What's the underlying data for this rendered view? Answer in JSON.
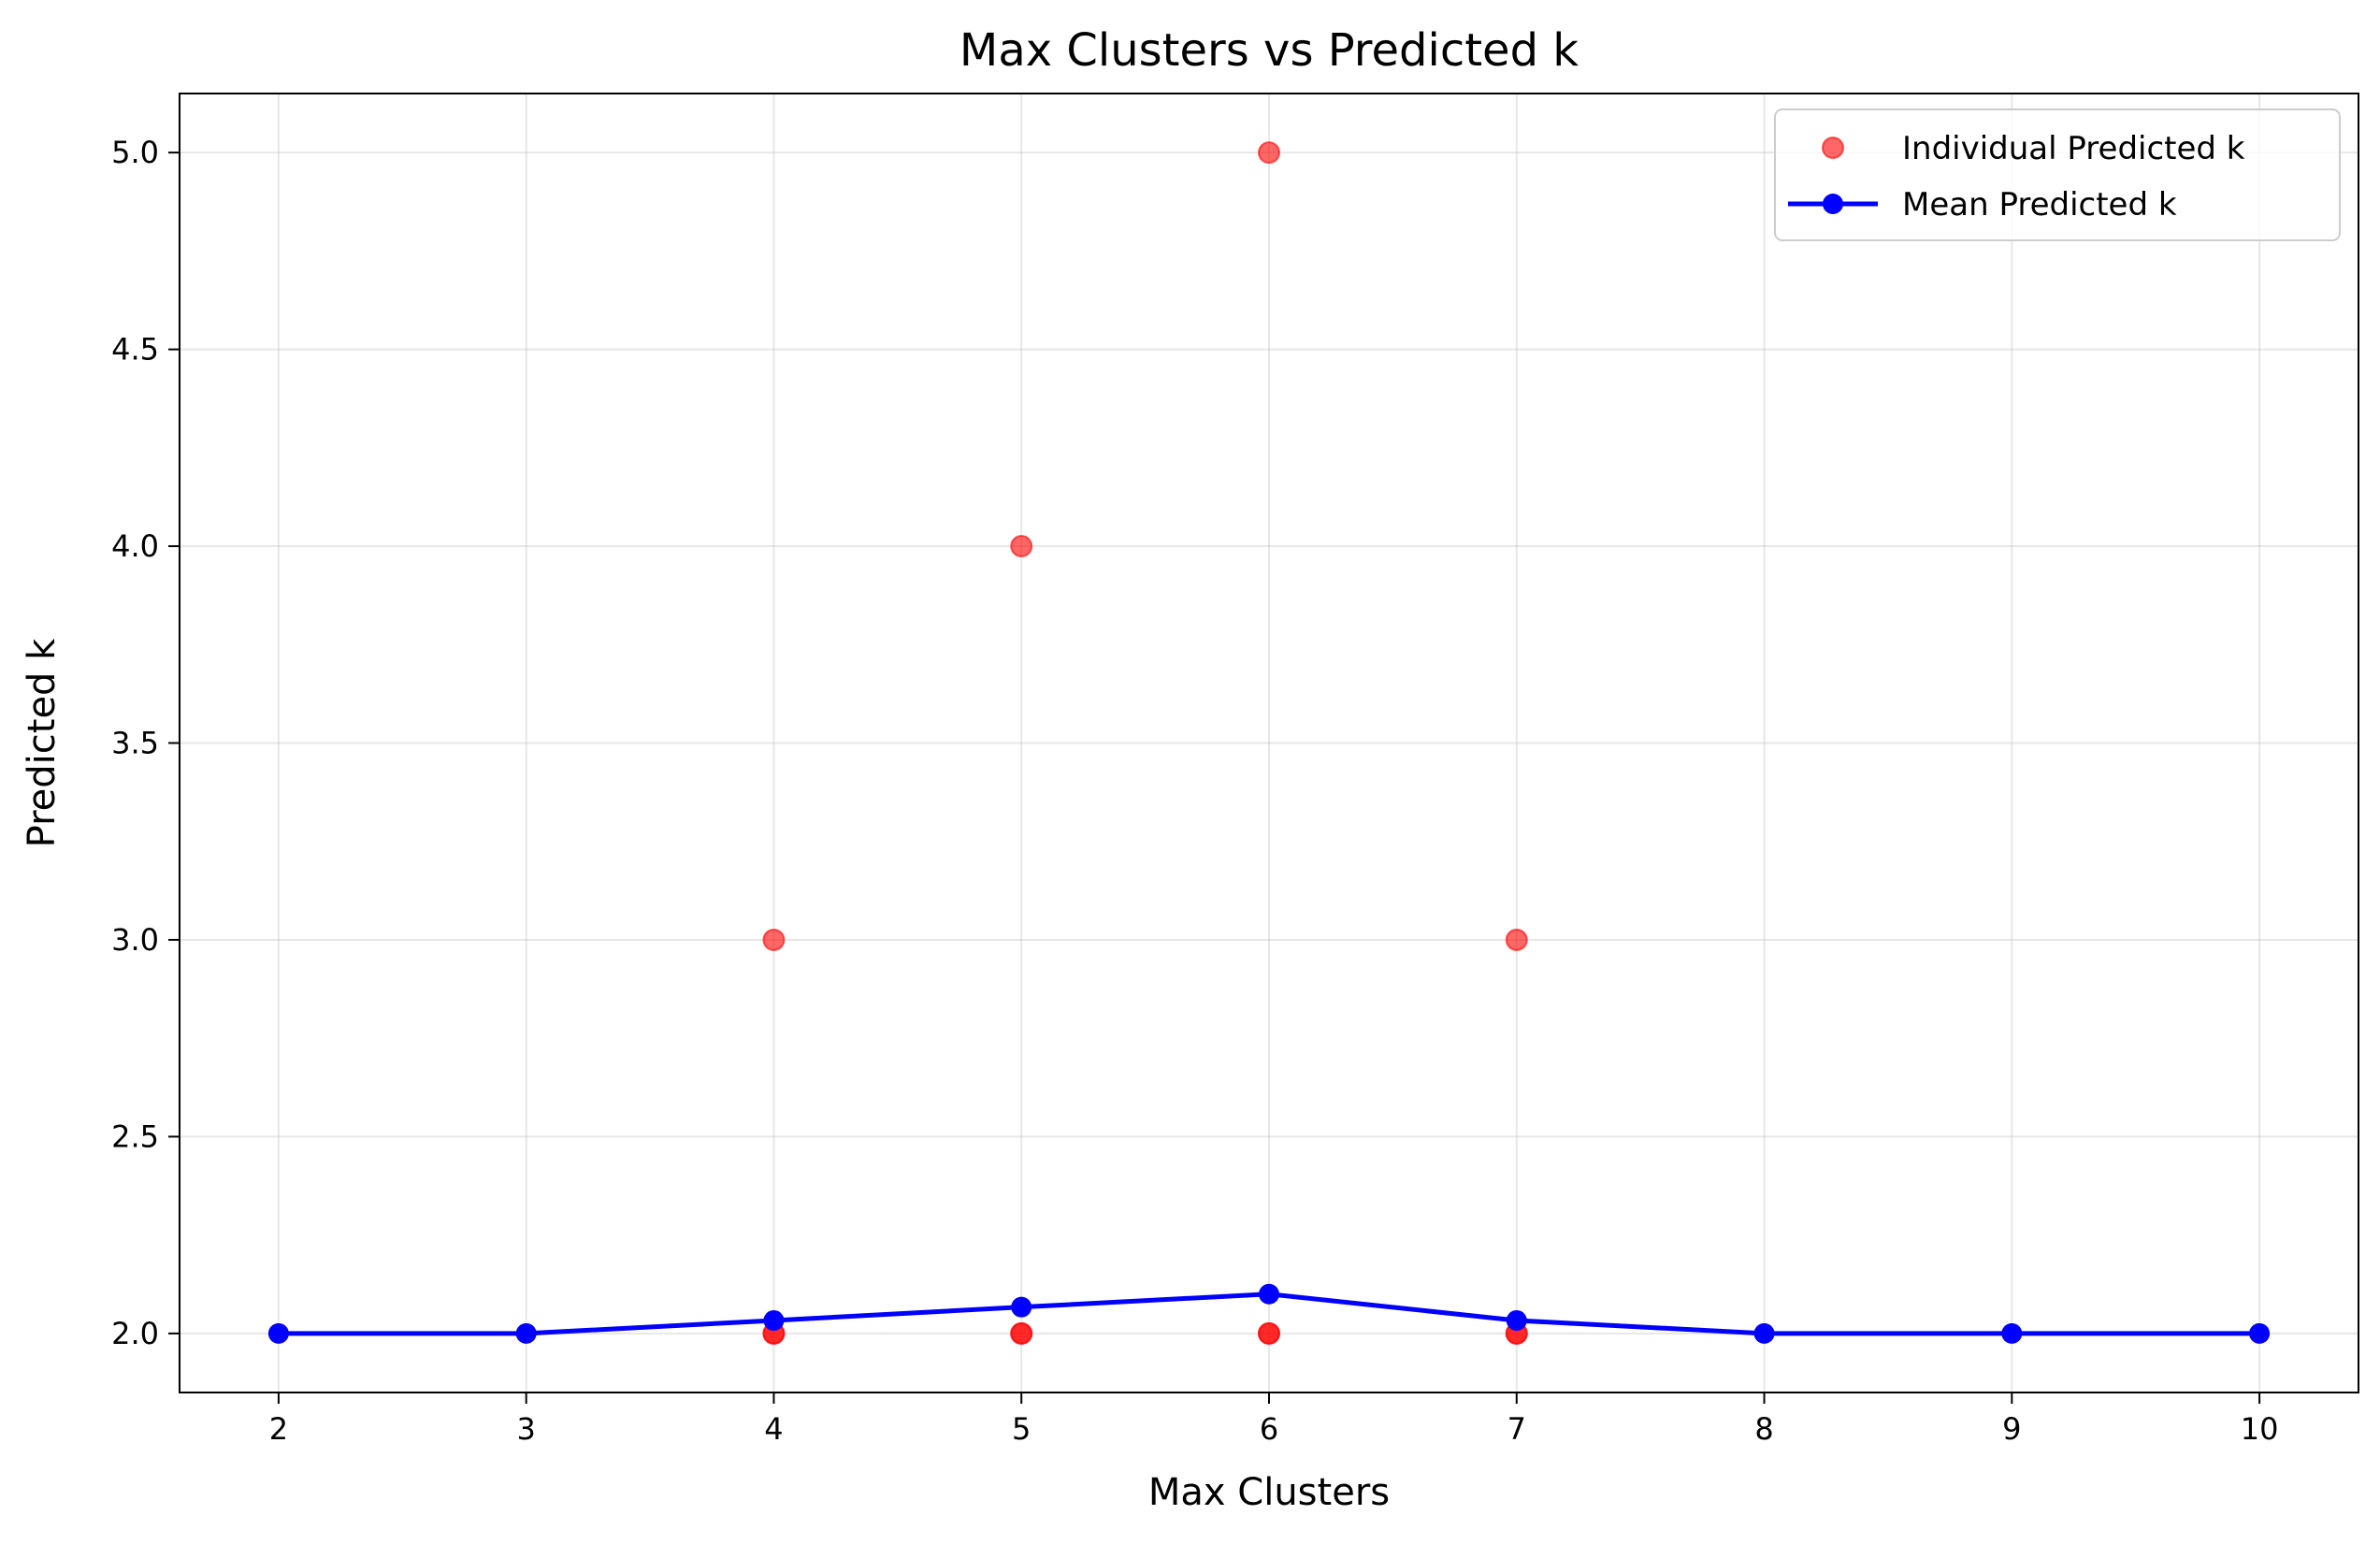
{
  "chart_data": {
    "type": "scatter",
    "title": "Max Clusters vs Predicted k",
    "xlabel": "Max Clusters",
    "ylabel": "Predicted k",
    "xlim": [
      1.6,
      10.4
    ],
    "ylim": [
      1.85,
      5.15
    ],
    "xticks": [
      2,
      3,
      4,
      5,
      6,
      7,
      8,
      9,
      10
    ],
    "yticks": [
      2.0,
      2.5,
      3.0,
      3.5,
      4.0,
      4.5,
      5.0
    ],
    "ytick_labels": [
      "2.0",
      "2.5",
      "3.0",
      "3.5",
      "4.0",
      "4.5",
      "5.0"
    ],
    "grid": true,
    "legend_position": "top-right",
    "series": [
      {
        "name": "Individual Predicted k",
        "kind": "scatter",
        "color": "#ff0000",
        "alpha": 0.6,
        "points": [
          [
            4,
            3
          ],
          [
            4,
            2
          ],
          [
            4,
            2
          ],
          [
            5,
            4
          ],
          [
            5,
            2
          ],
          [
            5,
            2
          ],
          [
            6,
            5
          ],
          [
            6,
            2
          ],
          [
            6,
            2
          ],
          [
            7,
            3
          ],
          [
            7,
            2
          ],
          [
            7,
            2
          ]
        ]
      },
      {
        "name": "Mean Predicted k",
        "kind": "line",
        "color": "#0000ff",
        "x": [
          2,
          3,
          4,
          5,
          6,
          7,
          8,
          9,
          10
        ],
        "y": [
          2.0,
          2.0,
          2.033,
          2.067,
          2.1,
          2.033,
          2.0,
          2.0,
          2.0
        ]
      }
    ]
  }
}
